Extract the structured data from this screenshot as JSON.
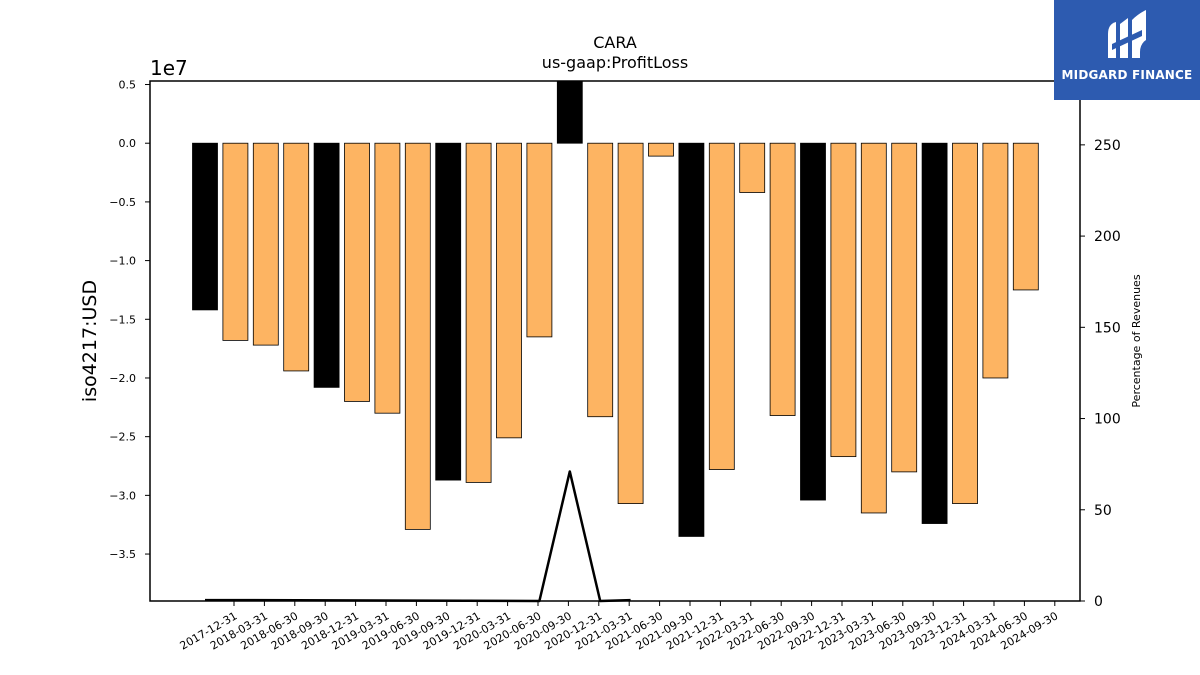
{
  "chart_data": {
    "type": "bar",
    "title": "CARA",
    "subtitle": "us-gaap:ProfitLoss",
    "ylabel": "iso4217:USD",
    "y_offset_text": "1e7",
    "y2label": "Percentage of Revenues",
    "ylim": [
      -39000000,
      5300000
    ],
    "y2lim": [
      0,
      285
    ],
    "yticks": [
      0.5,
      0.0,
      -0.5,
      -1.0,
      -1.5,
      -2.0,
      -2.5,
      -3.0,
      -3.5
    ],
    "ytick_labels": [
      "0.5",
      "0.0",
      "−0.5",
      "−1.0",
      "−1.5",
      "−2.0",
      "−2.5",
      "−3.0",
      "−3.5"
    ],
    "y2ticks": [
      0,
      50,
      100,
      150,
      200,
      250
    ],
    "y2tick_labels": [
      "0",
      "50",
      "100",
      "150",
      "200",
      "250"
    ],
    "categories": [
      "2017-12-31",
      "2018-03-31",
      "2018-06-30",
      "2018-09-30",
      "2018-12-31",
      "2019-03-31",
      "2019-06-30",
      "2019-09-30",
      "2019-12-31",
      "2020-03-31",
      "2020-06-30",
      "2020-09-30",
      "2020-12-31",
      "2021-03-31",
      "2021-06-30",
      "2021-09-30",
      "2021-12-31",
      "2022-03-31",
      "2022-06-30",
      "2022-09-30",
      "2022-12-31",
      "2023-03-31",
      "2023-06-30",
      "2023-09-30",
      "2023-12-31",
      "2024-03-31",
      "2024-06-30",
      "2024-09-30"
    ],
    "values": [
      -14200000,
      -16800000,
      -17200000,
      -19400000,
      -20800000,
      -22000000,
      -23000000,
      -32900000,
      -28700000,
      -28900000,
      -25100000,
      -16500000,
      5300000,
      -23300000,
      -30700000,
      -1100000,
      -33500000,
      -27800000,
      -4200000,
      -23200000,
      -30400000,
      -26700000,
      -31500000,
      -28000000,
      -32400000,
      -30700000,
      -20000000,
      -12500000
    ],
    "bar_kind": [
      "annual",
      "quarterly",
      "quarterly",
      "quarterly",
      "annual",
      "quarterly",
      "quarterly",
      "quarterly",
      "annual",
      "quarterly",
      "quarterly",
      "quarterly",
      "annual",
      "quarterly",
      "quarterly",
      "quarterly",
      "annual",
      "quarterly",
      "quarterly",
      "quarterly",
      "annual",
      "quarterly",
      "quarterly",
      "quarterly",
      "annual",
      "quarterly",
      "quarterly",
      "quarterly"
    ],
    "line_series": {
      "name": "Percentage of Revenues",
      "x_categories": [
        "2017-12-31",
        "2018-03-31",
        "2020-09-30",
        "2020-12-31",
        "2021-03-31",
        "2021-06-30"
      ],
      "values": [
        0.5,
        0.5,
        0,
        71,
        0,
        0.5
      ]
    },
    "colors": {
      "annual": "#000000",
      "quarterly": "#fdb462",
      "line": "#000000"
    },
    "grid": false
  },
  "logo": {
    "text": "MIDGARD FINANCE",
    "background": "#2d5bb0"
  }
}
